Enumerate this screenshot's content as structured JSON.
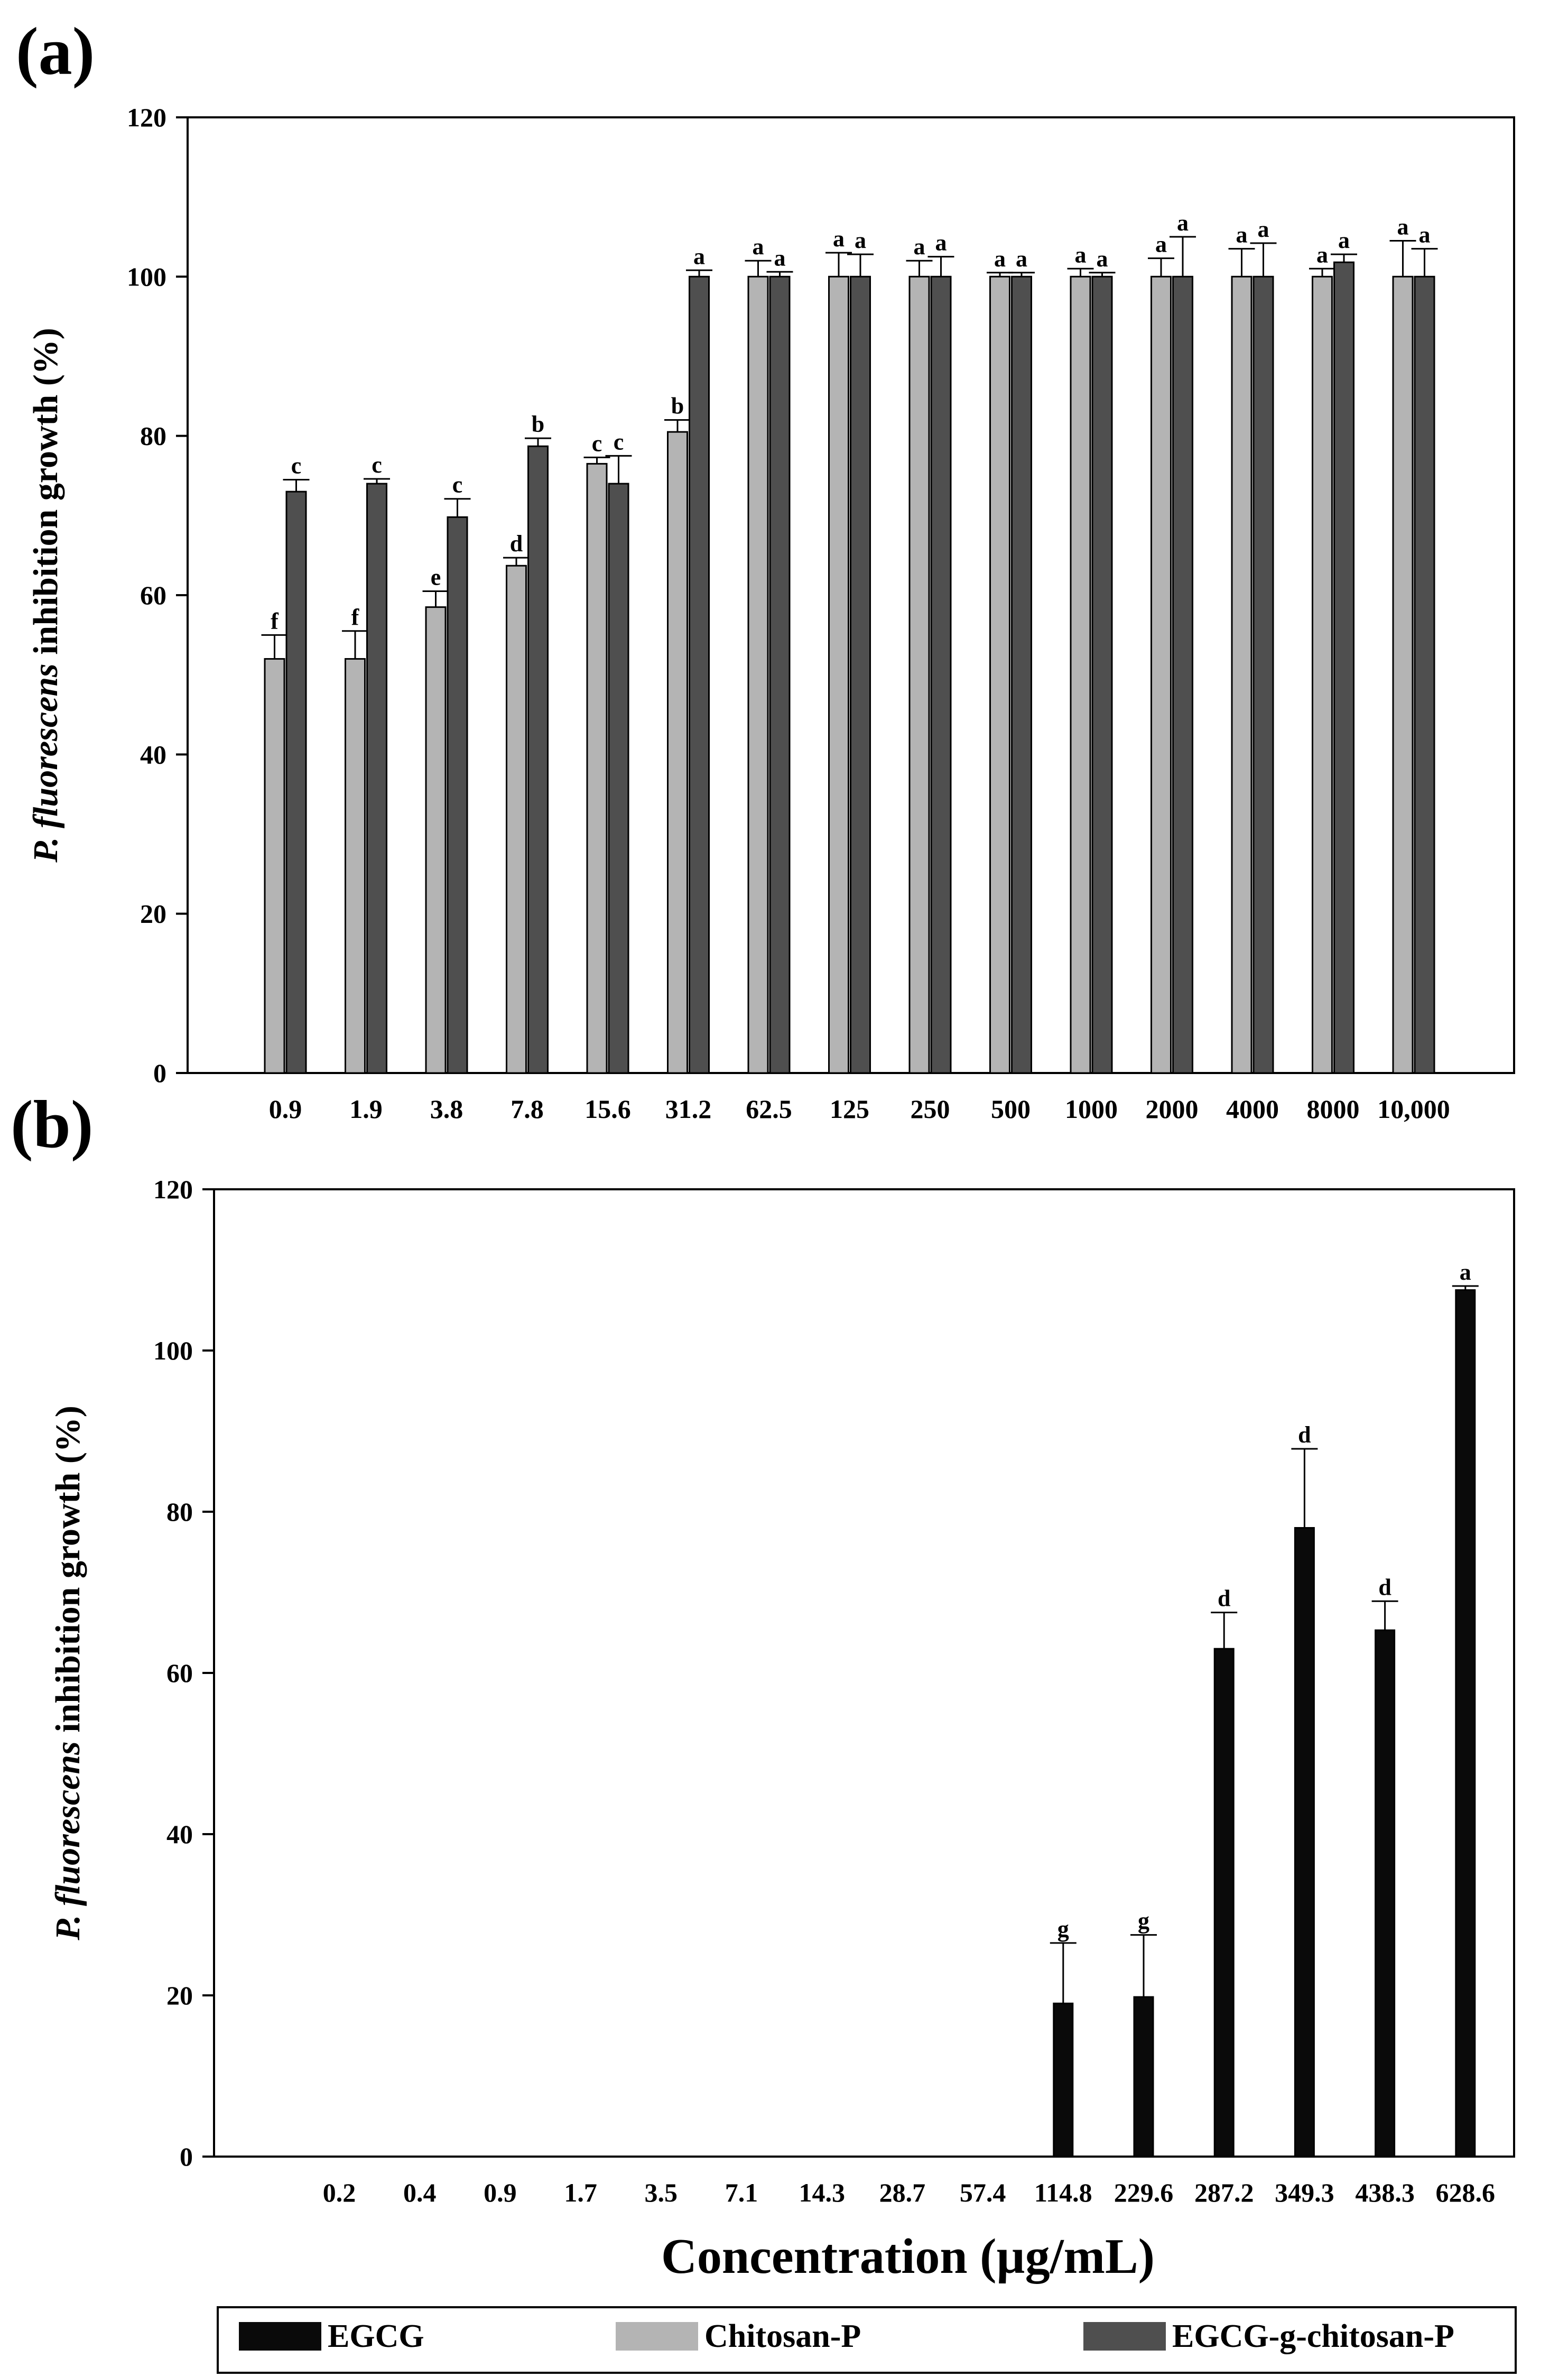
{
  "figure": {
    "xlabel": "Concentration (µg/mL)",
    "legend": [
      {
        "name": "EGCG",
        "color": "#0a0a0a"
      },
      {
        "name": "Chitosan-P",
        "color": "#b4b4b4"
      },
      {
        "name": "EGCG-g-chitosan-P",
        "color": "#4f4f4f"
      }
    ]
  },
  "chart_data": [
    {
      "panel": "(a)",
      "type": "bar",
      "title": "",
      "ylabel_italic": "P. fluorescens",
      "ylabel_rest": " inhibition growth (%)",
      "xlabel": "",
      "ylim": [
        0,
        120
      ],
      "yticks": [
        0,
        20,
        40,
        60,
        80,
        100,
        120
      ],
      "categories": [
        "0.9",
        "1.9",
        "3.8",
        "7.8",
        "15.6",
        "31.2",
        "62.5",
        "125",
        "250",
        "500",
        "1000",
        "2000",
        "4000",
        "8000",
        "10,000"
      ],
      "series": [
        {
          "name": "Chitosan-P",
          "color": "#b4b4b4",
          "values": [
            52,
            52,
            58.5,
            63.7,
            76.5,
            80.5,
            100,
            100,
            100,
            100,
            100,
            100,
            100,
            100,
            100
          ],
          "errors": [
            3,
            3.5,
            2,
            1,
            0.8,
            1.5,
            2,
            3,
            2,
            0.5,
            1,
            2.3,
            3.5,
            1,
            4.5
          ],
          "letters": [
            "f",
            "f",
            "e",
            "d",
            "c",
            "b",
            "a",
            "a",
            "a",
            "a",
            "a",
            "a",
            "a",
            "a",
            "a"
          ]
        },
        {
          "name": "EGCG-g-chitosan-P",
          "color": "#4f4f4f",
          "values": [
            73,
            74,
            69.8,
            78.7,
            74,
            100,
            100,
            100,
            100,
            100,
            100,
            100,
            100,
            101.8,
            100
          ],
          "errors": [
            1.5,
            0.6,
            2.3,
            1,
            3.5,
            0.8,
            0.6,
            2.8,
            2.5,
            0.5,
            0.5,
            5,
            4.2,
            1,
            3.5
          ],
          "letters": [
            "c",
            "c",
            "c",
            "b",
            "c",
            "a",
            "a",
            "a",
            "a",
            "a",
            "a",
            "a",
            "a",
            "a",
            "a"
          ]
        }
      ]
    },
    {
      "panel": "(b)",
      "type": "bar",
      "title": "",
      "ylabel_italic": "P. fluorescens",
      "ylabel_rest": " inhibition growth (%)",
      "xlabel": "Concentration (µg/mL)",
      "ylim": [
        0,
        120
      ],
      "yticks": [
        0,
        20,
        40,
        60,
        80,
        100,
        120
      ],
      "categories": [
        "0.2",
        "0.4",
        "0.9",
        "1.7",
        "3.5",
        "7.1",
        "14.3",
        "28.7",
        "57.4",
        "114.8",
        "229.6",
        "287.2",
        "349.3",
        "438.3",
        "628.6"
      ],
      "series": [
        {
          "name": "EGCG",
          "color": "#0a0a0a",
          "values": [
            0,
            0,
            0,
            0,
            0,
            0,
            0,
            0,
            0,
            19,
            19.8,
            63,
            78,
            65.3,
            107.5
          ],
          "errors": [
            0,
            0,
            0,
            0,
            0,
            0,
            0,
            0,
            0,
            7.5,
            7.7,
            4.5,
            9.8,
            3.6,
            0.5
          ],
          "letters": [
            "",
            "",
            "",
            "",
            "",
            "",
            "",
            "",
            "",
            "g",
            "g",
            "d",
            "d",
            "d",
            "a"
          ]
        }
      ]
    }
  ]
}
